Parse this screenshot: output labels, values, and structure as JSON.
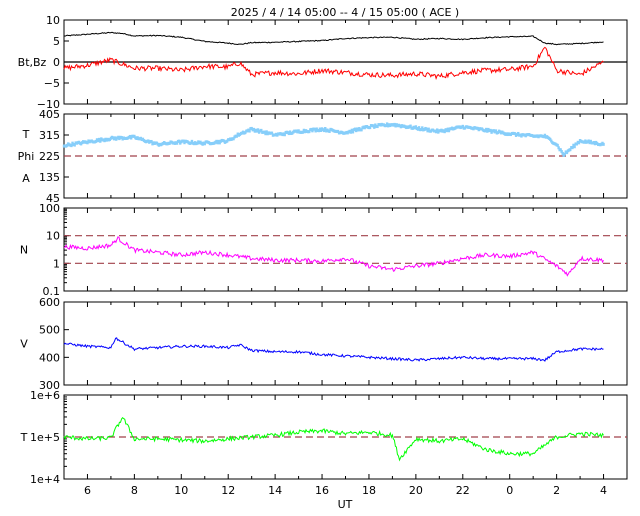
{
  "title": "2025 /  4 / 14   05:00 -- 4 / 15   05:00 ( ACE )",
  "xlabel": "UT",
  "x_ticks": [
    "6",
    "8",
    "10",
    "12",
    "14",
    "16",
    "18",
    "20",
    "22",
    "0",
    "2",
    "4"
  ],
  "colors": {
    "bt": "#000000",
    "bz": "#ff0000",
    "phi": "#87cefa",
    "phi_alt": "#ff00ff",
    "density": "#ff00ff",
    "speed": "#0000ff",
    "temperature": "#00ff00",
    "refline": "#a0404a"
  },
  "chart_data": [
    {
      "type": "line",
      "panel": "magnetic-field",
      "ylabel": "Bt,Bz",
      "ylim": [
        -10,
        10
      ],
      "y_ticks": [
        "10",
        "5",
        "0",
        "−5",
        "−10"
      ],
      "x_hours": [
        5,
        6,
        7,
        7.5,
        8,
        9,
        10,
        11,
        12,
        12.5,
        13,
        14,
        15,
        16,
        17,
        18,
        19,
        20,
        21,
        22,
        23,
        0,
        1,
        1.5,
        2,
        3,
        4
      ],
      "series": [
        {
          "key": "bt",
          "values": [
            6.2,
            6.6,
            7.0,
            6.8,
            6.2,
            6.3,
            5.9,
            4.9,
            4.5,
            4.2,
            4.6,
            4.7,
            4.9,
            5.1,
            5.6,
            5.8,
            5.9,
            5.4,
            5.6,
            5.4,
            5.8,
            6.0,
            6.1,
            4.5,
            4.2,
            4.4,
            4.8
          ]
        },
        {
          "key": "bz",
          "values": [
            -1.5,
            -0.8,
            0.5,
            -0.5,
            -1.5,
            -1.5,
            -2.0,
            -1.0,
            -1.2,
            -0.2,
            -3.0,
            -2.5,
            -2.8,
            -2.0,
            -2.5,
            -3.0,
            -3.2,
            -2.8,
            -3.4,
            -2.5,
            -2.0,
            -1.8,
            -1.0,
            3.5,
            -2.0,
            -3.0,
            0.0
          ]
        }
      ],
      "reference_lines": [
        0
      ]
    },
    {
      "type": "scatter",
      "panel": "phi-angle",
      "ylabel_lines": [
        "T",
        "Phi",
        "A"
      ],
      "ylim": [
        45,
        405
      ],
      "y_ticks": [
        "405",
        "315",
        "225",
        "135",
        "45"
      ],
      "x_hours": [
        5,
        6,
        7,
        8,
        9,
        10,
        11,
        12,
        12.5,
        13,
        14,
        15,
        16,
        17,
        18,
        19,
        20,
        21,
        22,
        23,
        0,
        1,
        1.5,
        2,
        2.3,
        3,
        4
      ],
      "series": [
        {
          "key": "phi",
          "values": [
            270,
            285,
            300,
            305,
            275,
            285,
            280,
            290,
            320,
            340,
            315,
            330,
            340,
            325,
            350,
            360,
            345,
            330,
            350,
            335,
            320,
            310,
            310,
            275,
            230,
            290,
            275
          ]
        }
      ],
      "reference_lines": [
        225
      ]
    },
    {
      "type": "line",
      "panel": "density",
      "ylabel": "N",
      "yscale": "log",
      "ylim": [
        0.1,
        100
      ],
      "y_ticks": [
        "100",
        "10",
        "1",
        "0.1"
      ],
      "x_hours": [
        5,
        6,
        7,
        7.3,
        8,
        9,
        10,
        11,
        12,
        13,
        14,
        15,
        16,
        17,
        18,
        19,
        20,
        21,
        22,
        23,
        0,
        1,
        2,
        2.5,
        3,
        4
      ],
      "series": [
        {
          "key": "density",
          "values": [
            4.0,
            3.5,
            4.5,
            8.0,
            3.0,
            2.5,
            2.0,
            2.5,
            2.0,
            1.5,
            1.3,
            1.3,
            1.2,
            1.5,
            0.8,
            0.6,
            0.8,
            1.0,
            1.5,
            2.0,
            1.8,
            2.5,
            0.8,
            0.4,
            1.5,
            1.3
          ]
        }
      ],
      "reference_lines": [
        10,
        1
      ]
    },
    {
      "type": "line",
      "panel": "speed",
      "ylabel": "V",
      "ylim": [
        300,
        600
      ],
      "y_ticks": [
        "600",
        "500",
        "400",
        "300"
      ],
      "x_hours": [
        5,
        6,
        7,
        7.2,
        8,
        9,
        10,
        11,
        12,
        12.5,
        13,
        14,
        15,
        16,
        17,
        18,
        19,
        20,
        21,
        22,
        23,
        0,
        1,
        1.5,
        2,
        3,
        4
      ],
      "series": [
        {
          "key": "speed",
          "values": [
            450,
            440,
            435,
            470,
            430,
            435,
            440,
            440,
            435,
            445,
            425,
            420,
            420,
            410,
            405,
            400,
            395,
            390,
            395,
            400,
            395,
            395,
            395,
            390,
            420,
            430,
            430
          ]
        }
      ]
    },
    {
      "type": "line",
      "panel": "temperature",
      "ylabel": "T",
      "yscale": "log",
      "ylim": [
        10000,
        1000000
      ],
      "y_ticks": [
        "1e+6",
        "1e+5",
        "1e+4"
      ],
      "x_hours": [
        5,
        6,
        7,
        7.5,
        8,
        9,
        10,
        11,
        12,
        13,
        14,
        15,
        16,
        17,
        18,
        19,
        19.3,
        20,
        21,
        22,
        23,
        0,
        1,
        2,
        3,
        4
      ],
      "series": [
        {
          "key": "temperature",
          "values": [
            100000,
            90000,
            95000,
            300000,
            90000,
            90000,
            85000,
            80000,
            90000,
            100000,
            110000,
            130000,
            140000,
            120000,
            130000,
            110000,
            30000,
            90000,
            80000,
            90000,
            50000,
            40000,
            40000,
            100000,
            120000,
            110000
          ]
        }
      ],
      "reference_lines": [
        100000
      ]
    }
  ]
}
